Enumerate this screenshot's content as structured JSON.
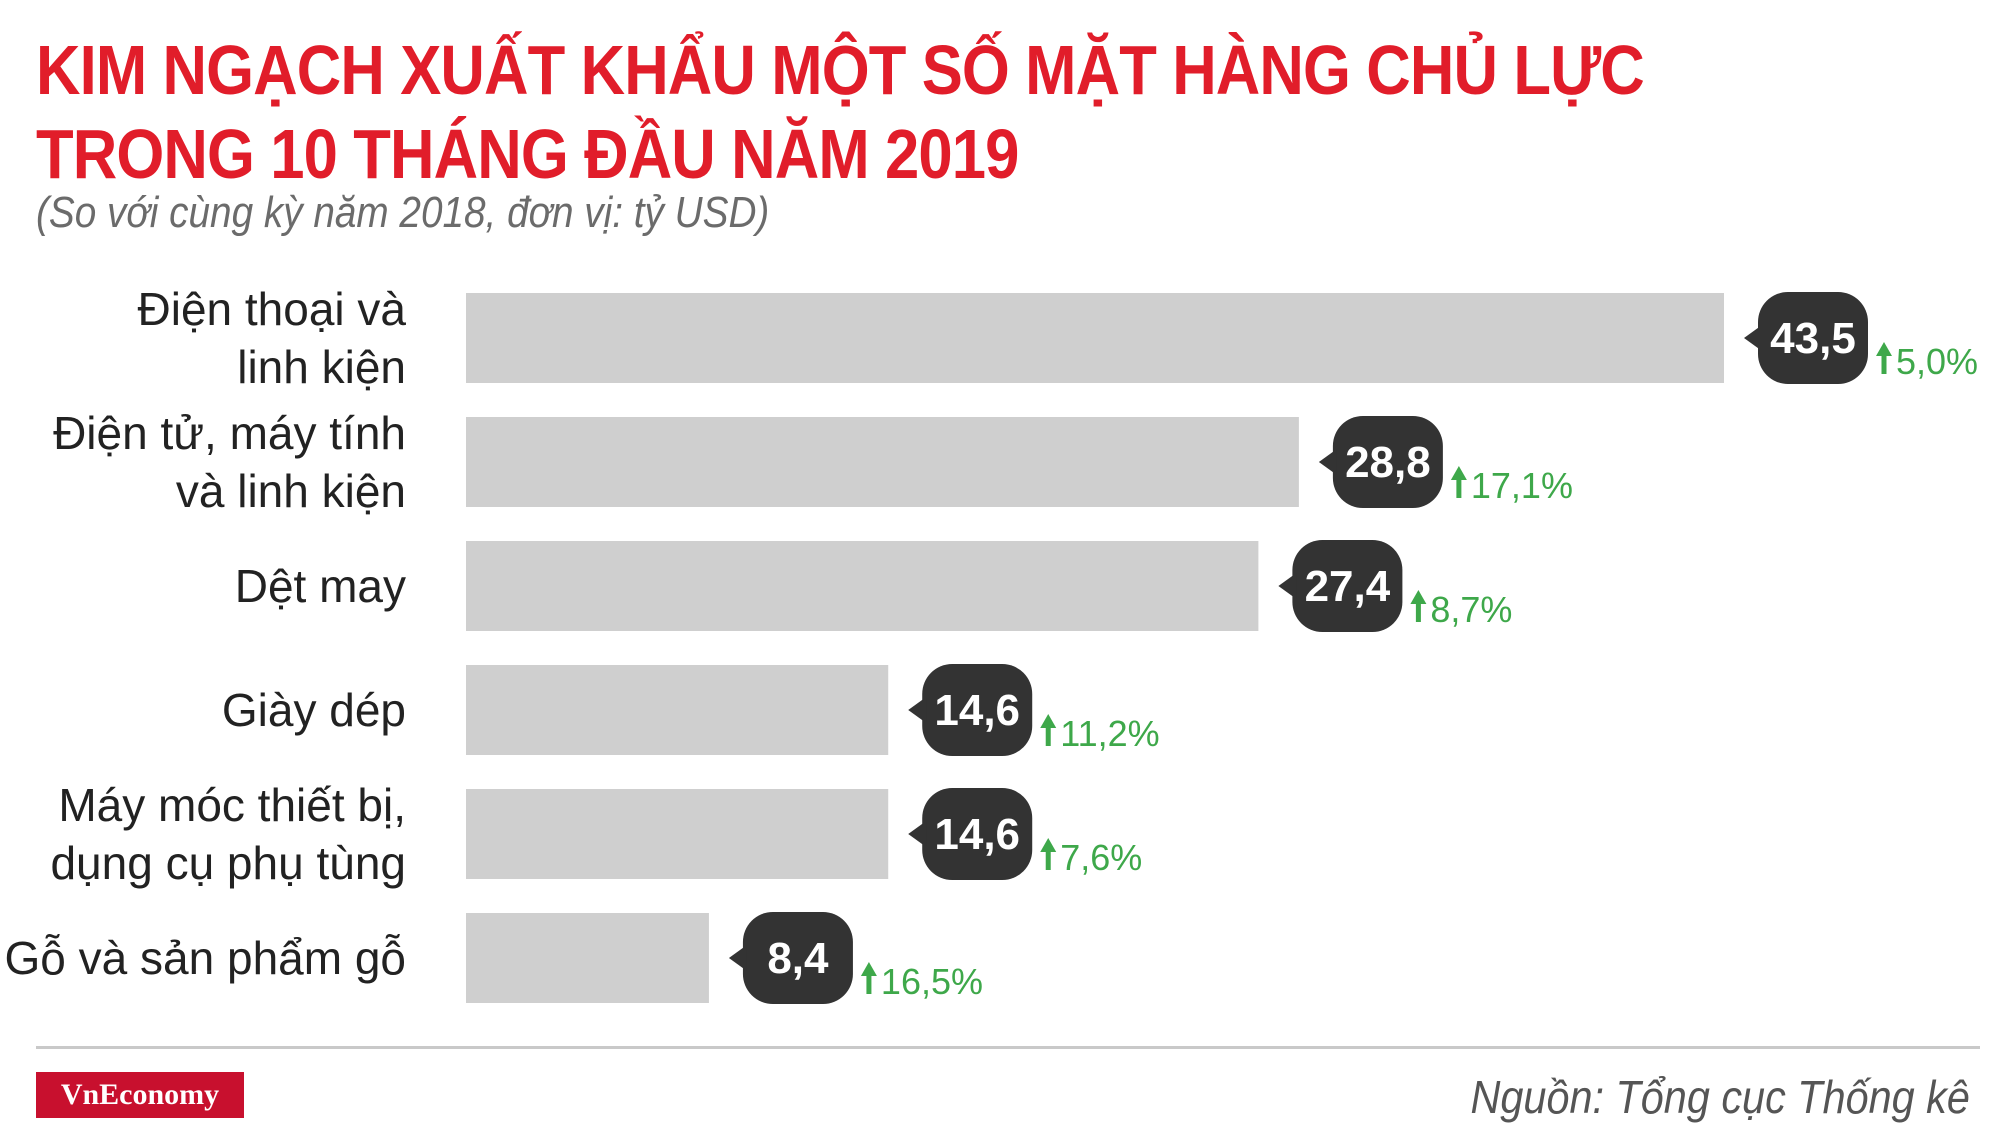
{
  "title_line1": "KIM NGẠCH XUẤT KHẨU MỘT SỐ MẶT HÀNG CHỦ LỰC",
  "title_line2": "TRONG 10 THÁNG ĐẦU NĂM 2019",
  "subtitle": "(So với cùng kỳ năm 2018, đơn vị: tỷ USD)",
  "brand": "VnEconomy",
  "source": "Nguồn: Tổng cục Thống kê",
  "colors": {
    "title": "#e11d2a",
    "bar": "#cfcfcf",
    "callout": "#333333",
    "increase": "#3ea84a"
  },
  "chart_data": {
    "type": "bar",
    "orientation": "horizontal",
    "categories": [
      [
        "Điện thoại và",
        "linh kiện"
      ],
      [
        "Điện tử, máy tính",
        "và linh kiện"
      ],
      [
        "Dệt may"
      ],
      [
        "Giày dép"
      ],
      [
        "Máy móc thiết bị,",
        "dụng cụ phụ tùng"
      ],
      [
        "Gỗ và sản phẩm gỗ"
      ]
    ],
    "values": [
      43.5,
      28.8,
      27.4,
      14.6,
      14.6,
      8.4
    ],
    "value_labels": [
      "43,5",
      "28,8",
      "27,4",
      "14,6",
      "14,6",
      "8,4"
    ],
    "change_labels": [
      "5,0%",
      "17,1%",
      "8,7%",
      "11,2%",
      "7,6%",
      "16,5%"
    ],
    "change_direction": [
      "up",
      "up",
      "up",
      "up",
      "up",
      "up"
    ],
    "xlim": [
      0,
      43.5
    ],
    "grid": false,
    "legend": "none"
  }
}
